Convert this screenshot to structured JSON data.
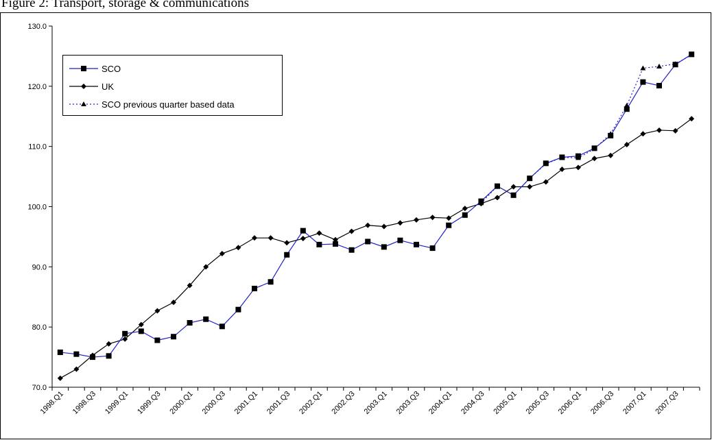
{
  "chart_data": {
    "type": "line",
    "title": "Figure 2: Transport, storage & communications",
    "ylim": [
      70,
      130
    ],
    "yticks": [
      "70.0",
      "80.0",
      "90.0",
      "100.0",
      "110.0",
      "120.0",
      "130.0"
    ],
    "ytick_values": [
      70,
      80,
      90,
      100,
      110,
      120,
      130
    ],
    "x": [
      "1998.Q1",
      "1998.Q2",
      "1998.Q3",
      "1998.Q4",
      "1999.Q1",
      "1999.Q2",
      "1999.Q3",
      "1999.Q4",
      "2000.Q1",
      "2000.Q2",
      "2000.Q3",
      "2000.Q4",
      "2001.Q1",
      "2001.Q2",
      "2001.Q3",
      "2001.Q4",
      "2002.Q1",
      "2002.Q2",
      "2002.Q3",
      "2002.Q4",
      "2003.Q1",
      "2003.Q2",
      "2003.Q3",
      "2003.Q4",
      "2004.Q1",
      "2004.Q2",
      "2004.Q3",
      "2004.Q4",
      "2005.Q1",
      "2005.Q2",
      "2005.Q3",
      "2005.Q4",
      "2006.Q1",
      "2006.Q2",
      "2006.Q3",
      "2006.Q4",
      "2007.Q1",
      "2007.Q2",
      "2007.Q3",
      "2007.Q4"
    ],
    "xtick_labels": [
      "1998.Q1",
      "1998.Q3",
      "1999.Q1",
      "1999.Q3",
      "2000.Q1",
      "2000.Q3",
      "2001.Q1",
      "2001.Q3",
      "2002.Q1",
      "2002.Q3",
      "2003.Q1",
      "2003.Q3",
      "2004.Q1",
      "2004.Q3",
      "2005.Q1",
      "2005.Q3",
      "2006.Q1",
      "2006.Q3",
      "2007.Q1",
      "2007.Q3"
    ],
    "grid": false,
    "legend_placement": "top-left",
    "series": [
      {
        "name": "SCO",
        "color": "#1f1fc8",
        "marker": "square",
        "values": [
          75.8,
          75.5,
          75.0,
          75.2,
          78.9,
          79.3,
          77.8,
          78.4,
          80.7,
          81.3,
          80.1,
          82.9,
          86.4,
          87.5,
          92.0,
          96.0,
          93.7,
          93.8,
          92.8,
          94.2,
          93.3,
          94.4,
          93.7,
          93.1,
          96.9,
          98.6,
          100.9,
          103.4,
          101.9,
          104.7,
          107.2,
          108.2,
          108.4,
          109.7,
          111.8,
          116.2,
          120.7,
          120.1,
          123.6,
          125.3
        ]
      },
      {
        "name": "UK",
        "color": "#000000",
        "marker": "diamond",
        "values": [
          71.5,
          73.0,
          75.3,
          77.2,
          78.0,
          80.4,
          82.7,
          84.1,
          86.9,
          90.0,
          92.2,
          93.2,
          94.8,
          94.8,
          94.0,
          94.7,
          95.6,
          94.5,
          95.9,
          96.9,
          96.7,
          97.3,
          97.8,
          98.2,
          98.1,
          99.7,
          100.5,
          101.5,
          103.3,
          103.3,
          104.1,
          106.2,
          106.5,
          108.0,
          108.5,
          110.3,
          112.1,
          112.7,
          112.6,
          114.6
        ]
      },
      {
        "name": "SCO previous quarter based data",
        "color": "#1f1fc8",
        "marker": "triangle",
        "dashed": true,
        "values": [
          null,
          null,
          null,
          null,
          null,
          null,
          null,
          null,
          null,
          null,
          null,
          null,
          null,
          null,
          null,
          null,
          null,
          null,
          null,
          null,
          null,
          null,
          null,
          null,
          null,
          null,
          100.6,
          103.4,
          101.9,
          104.7,
          107.1,
          108.2,
          108.1,
          109.6,
          112.1,
          116.8,
          123.0,
          123.3,
          123.7,
          125.2
        ]
      }
    ]
  }
}
